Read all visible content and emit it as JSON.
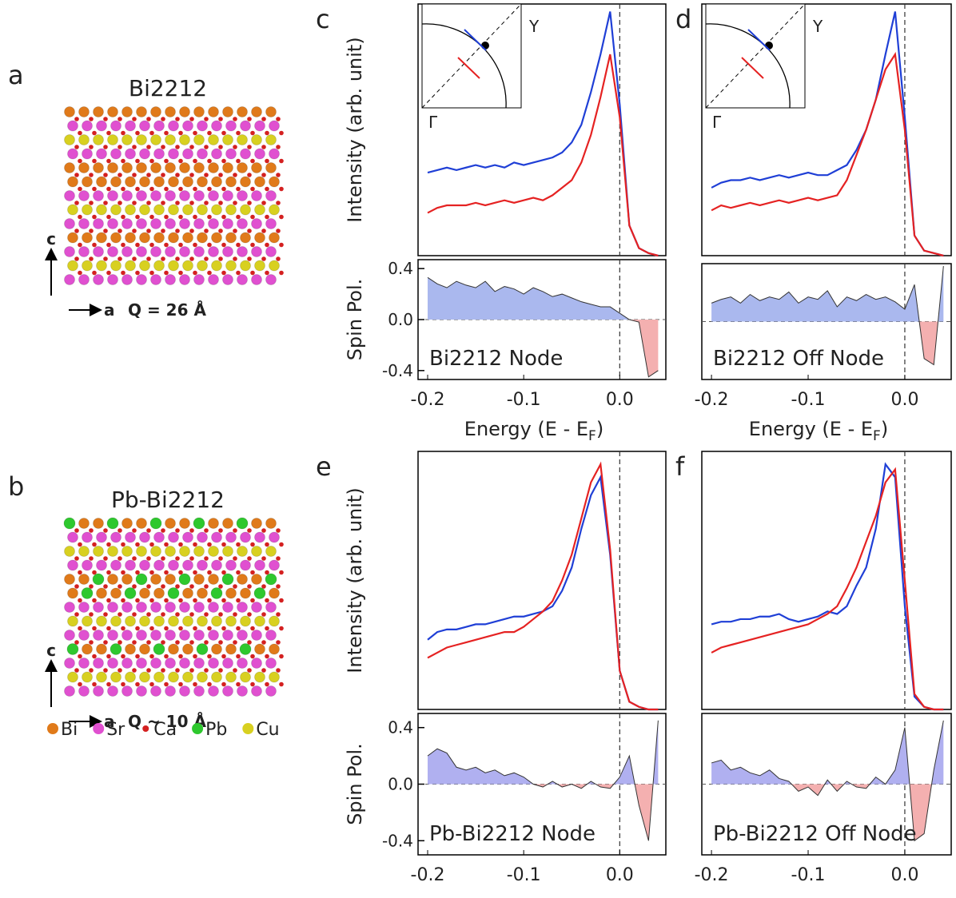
{
  "panels_left": [
    {
      "label": "a",
      "title": "Bi2212",
      "axis_c": "c",
      "axis_a": "a",
      "q": "Q = 26 Å"
    },
    {
      "label": "b",
      "title": "Pb-Bi2212",
      "axis_c": "c",
      "axis_a": "a",
      "q": "Q ~ 10 Å"
    }
  ],
  "legend": [
    {
      "name": "Bi",
      "color": "#e07a1a"
    },
    {
      "name": "Sr",
      "color": "#e050d0"
    },
    {
      "name": "Ca",
      "color": "#d42020"
    },
    {
      "name": "Pb",
      "color": "#2ec82e"
    },
    {
      "name": "Cu",
      "color": "#d8d020"
    }
  ],
  "chart_data": [
    {
      "type": "line",
      "panel": "c",
      "ylabel": "Intensity (arb. unit)",
      "inset_labels": [
        "Y",
        "Γ"
      ],
      "xlim": [
        -0.21,
        0.048
      ],
      "ylim": [
        0,
        1
      ],
      "x": [
        -0.2,
        -0.19,
        -0.18,
        -0.17,
        -0.16,
        -0.15,
        -0.14,
        -0.13,
        -0.12,
        -0.11,
        -0.1,
        -0.09,
        -0.08,
        -0.07,
        -0.06,
        -0.05,
        -0.04,
        -0.03,
        -0.02,
        -0.01,
        0,
        0.01,
        0.02,
        0.03,
        0.04
      ],
      "series": [
        {
          "color": "#1f3fd6",
          "values": [
            0.33,
            0.34,
            0.35,
            0.34,
            0.35,
            0.36,
            0.35,
            0.36,
            0.35,
            0.37,
            0.36,
            0.37,
            0.38,
            0.39,
            0.41,
            0.45,
            0.52,
            0.65,
            0.8,
            0.97,
            0.6,
            0.12,
            0.03,
            0.01,
            0
          ]
        },
        {
          "color": "#e52222",
          "values": [
            0.17,
            0.19,
            0.2,
            0.2,
            0.2,
            0.21,
            0.2,
            0.21,
            0.22,
            0.21,
            0.22,
            0.23,
            0.22,
            0.24,
            0.27,
            0.3,
            0.37,
            0.48,
            0.63,
            0.8,
            0.55,
            0.12,
            0.03,
            0.01,
            0
          ]
        }
      ]
    },
    {
      "type": "area",
      "ylabel": "Spin Pol.",
      "xlabel": "Energy (E - E",
      "xlabel_sub": "F",
      "annotation": "Bi2212 Node",
      "fill_pos": "#aab8ee",
      "fill_neg": "#f4b0b0",
      "xlim": [
        -0.21,
        0.048
      ],
      "ylim": [
        -0.47,
        0.47
      ],
      "xticks": [
        -0.2,
        -0.1,
        {
          "value": 0,
          "label": "0.0"
        }
      ],
      "yticks": [
        -0.4,
        {
          "value": 0,
          "label": "0.0"
        },
        0.4
      ],
      "x": [
        -0.2,
        -0.19,
        -0.18,
        -0.17,
        -0.16,
        -0.15,
        -0.14,
        -0.13,
        -0.12,
        -0.11,
        -0.1,
        -0.09,
        -0.08,
        -0.07,
        -0.06,
        -0.05,
        -0.04,
        -0.03,
        -0.02,
        -0.01,
        0,
        0.01,
        0.02,
        0.03,
        0.04
      ],
      "values": [
        0.33,
        0.28,
        0.25,
        0.3,
        0.27,
        0.25,
        0.3,
        0.22,
        0.26,
        0.24,
        0.2,
        0.25,
        0.22,
        0.18,
        0.2,
        0.17,
        0.14,
        0.12,
        0.1,
        0.1,
        0.05,
        0.0,
        -0.02,
        -0.45,
        -0.4
      ]
    },
    {
      "type": "line",
      "panel": "d",
      "ylabel": "",
      "inset_labels": [
        "Y",
        "Γ"
      ],
      "xlim": [
        -0.21,
        0.048
      ],
      "ylim": [
        0,
        1
      ],
      "x": [
        -0.2,
        -0.19,
        -0.18,
        -0.17,
        -0.16,
        -0.15,
        -0.14,
        -0.13,
        -0.12,
        -0.11,
        -0.1,
        -0.09,
        -0.08,
        -0.07,
        -0.06,
        -0.05,
        -0.04,
        -0.03,
        -0.02,
        -0.01,
        0,
        0.01,
        0.02,
        0.03,
        0.04
      ],
      "series": [
        {
          "color": "#1f3fd6",
          "values": [
            0.27,
            0.29,
            0.3,
            0.3,
            0.31,
            0.3,
            0.31,
            0.32,
            0.31,
            0.32,
            0.33,
            0.32,
            0.32,
            0.34,
            0.36,
            0.42,
            0.5,
            0.62,
            0.8,
            0.97,
            0.55,
            0.08,
            0.02,
            0.01,
            0
          ]
        },
        {
          "color": "#e52222",
          "values": [
            0.18,
            0.2,
            0.19,
            0.2,
            0.21,
            0.2,
            0.21,
            0.22,
            0.21,
            0.22,
            0.23,
            0.22,
            0.23,
            0.24,
            0.3,
            0.4,
            0.5,
            0.62,
            0.74,
            0.8,
            0.5,
            0.08,
            0.02,
            0.01,
            0
          ]
        }
      ]
    },
    {
      "type": "area",
      "ylabel": "",
      "xlabel": "Energy (E - E",
      "xlabel_sub": "F",
      "annotation": "Bi2212 Off Node",
      "fill_pos": "#aab8ee",
      "fill_neg": "#f4b0b0",
      "xlim": [
        -0.21,
        0.048
      ],
      "ylim": [
        -0.47,
        0.47
      ],
      "xticks": [
        -0.2,
        -0.1,
        {
          "value": 0,
          "label": "0.0"
        }
      ],
      "x": [
        -0.2,
        -0.19,
        -0.18,
        -0.17,
        -0.16,
        -0.15,
        -0.14,
        -0.13,
        -0.12,
        -0.11,
        -0.1,
        -0.09,
        -0.08,
        -0.07,
        -0.06,
        -0.05,
        -0.04,
        -0.03,
        -0.02,
        -0.01,
        0,
        0.01,
        0.02,
        0.03,
        0.04
      ],
      "values": [
        0.15,
        0.18,
        0.2,
        0.15,
        0.22,
        0.17,
        0.2,
        0.18,
        0.24,
        0.15,
        0.2,
        0.18,
        0.25,
        0.12,
        0.2,
        0.17,
        0.22,
        0.18,
        0.2,
        0.16,
        0.1,
        0.3,
        -0.3,
        -0.35,
        0.45
      ]
    },
    {
      "type": "line",
      "panel": "e",
      "ylabel": "Intensity (arb. unit)",
      "xlim": [
        -0.21,
        0.048
      ],
      "ylim": [
        0,
        1
      ],
      "x": [
        -0.2,
        -0.19,
        -0.18,
        -0.17,
        -0.16,
        -0.15,
        -0.14,
        -0.13,
        -0.12,
        -0.11,
        -0.1,
        -0.09,
        -0.08,
        -0.07,
        -0.06,
        -0.05,
        -0.04,
        -0.03,
        -0.02,
        -0.01,
        0,
        0.01,
        0.02,
        0.03,
        0.04
      ],
      "series": [
        {
          "color": "#1f3fd6",
          "values": [
            0.27,
            0.3,
            0.31,
            0.31,
            0.32,
            0.33,
            0.33,
            0.34,
            0.35,
            0.36,
            0.36,
            0.37,
            0.38,
            0.4,
            0.46,
            0.55,
            0.7,
            0.83,
            0.9,
            0.6,
            0.15,
            0.03,
            0.01,
            0,
            0
          ]
        },
        {
          "color": "#e52222",
          "values": [
            0.2,
            0.22,
            0.24,
            0.25,
            0.26,
            0.27,
            0.28,
            0.29,
            0.3,
            0.3,
            0.32,
            0.35,
            0.38,
            0.42,
            0.5,
            0.6,
            0.74,
            0.88,
            0.95,
            0.62,
            0.15,
            0.03,
            0.01,
            0,
            0
          ]
        }
      ]
    },
    {
      "type": "area",
      "ylabel": "Spin Pol.",
      "xlabel": "Energy (E - E",
      "xlabel_sub": "F",
      "annotation": "Pb-Bi2212 Node",
      "fill_pos": "#b0b0f0",
      "fill_neg": "#f4b0b0",
      "xlim": [
        -0.21,
        0.048
      ],
      "ylim": [
        -0.5,
        0.5
      ],
      "xticks": [
        -0.2,
        -0.1,
        {
          "value": 0,
          "label": "0.0"
        }
      ],
      "yticks": [
        -0.4,
        {
          "value": 0,
          "label": "0.0"
        },
        0.4
      ],
      "x": [
        -0.2,
        -0.19,
        -0.18,
        -0.17,
        -0.16,
        -0.15,
        -0.14,
        -0.13,
        -0.12,
        -0.11,
        -0.1,
        -0.09,
        -0.08,
        -0.07,
        -0.06,
        -0.05,
        -0.04,
        -0.03,
        -0.02,
        -0.01,
        0,
        0.01,
        0.02,
        0.03,
        0.04
      ],
      "values": [
        0.2,
        0.25,
        0.22,
        0.12,
        0.1,
        0.12,
        0.08,
        0.1,
        0.06,
        0.08,
        0.05,
        0.0,
        -0.02,
        0.02,
        -0.02,
        0.0,
        -0.03,
        0.02,
        -0.02,
        -0.03,
        0.05,
        0.2,
        -0.15,
        -0.4,
        0.45
      ]
    },
    {
      "type": "line",
      "panel": "f",
      "ylabel": "",
      "xlim": [
        -0.21,
        0.048
      ],
      "ylim": [
        0,
        1
      ],
      "x": [
        -0.2,
        -0.19,
        -0.18,
        -0.17,
        -0.16,
        -0.15,
        -0.14,
        -0.13,
        -0.12,
        -0.11,
        -0.1,
        -0.09,
        -0.08,
        -0.07,
        -0.06,
        -0.05,
        -0.04,
        -0.03,
        -0.02,
        -0.01,
        0,
        0.01,
        0.02,
        0.03,
        0.04
      ],
      "series": [
        {
          "color": "#1f3fd6",
          "values": [
            0.33,
            0.34,
            0.34,
            0.35,
            0.35,
            0.36,
            0.36,
            0.37,
            0.35,
            0.34,
            0.35,
            0.36,
            0.38,
            0.37,
            0.4,
            0.48,
            0.55,
            0.7,
            0.95,
            0.9,
            0.4,
            0.05,
            0.01,
            0,
            0
          ]
        },
        {
          "color": "#e52222",
          "values": [
            0.22,
            0.24,
            0.25,
            0.26,
            0.27,
            0.28,
            0.29,
            0.3,
            0.31,
            0.32,
            0.33,
            0.35,
            0.37,
            0.4,
            0.47,
            0.55,
            0.65,
            0.75,
            0.88,
            0.93,
            0.5,
            0.06,
            0.01,
            0,
            0
          ]
        }
      ]
    },
    {
      "type": "area",
      "ylabel": "",
      "xlabel": "Energy (E - E",
      "xlabel_sub": "F",
      "annotation": "Pb-Bi2212 Off Node",
      "fill_pos": "#b0b0f0",
      "fill_neg": "#f4b0b0",
      "xlim": [
        -0.21,
        0.048
      ],
      "ylim": [
        -0.5,
        0.5
      ],
      "xticks": [
        -0.2,
        -0.1,
        {
          "value": 0,
          "label": "0.0"
        }
      ],
      "x": [
        -0.2,
        -0.19,
        -0.18,
        -0.17,
        -0.16,
        -0.15,
        -0.14,
        -0.13,
        -0.12,
        -0.11,
        -0.1,
        -0.09,
        -0.08,
        -0.07,
        -0.06,
        -0.05,
        -0.04,
        -0.03,
        -0.02,
        -0.01,
        0,
        0.01,
        0.02,
        0.03,
        0.04
      ],
      "values": [
        0.15,
        0.17,
        0.1,
        0.12,
        0.08,
        0.06,
        0.1,
        0.04,
        0.02,
        -0.05,
        -0.02,
        -0.08,
        0.03,
        -0.05,
        0.02,
        -0.02,
        -0.03,
        0.05,
        0.0,
        0.1,
        0.4,
        -0.4,
        -0.35,
        0.1,
        0.45
      ]
    }
  ]
}
